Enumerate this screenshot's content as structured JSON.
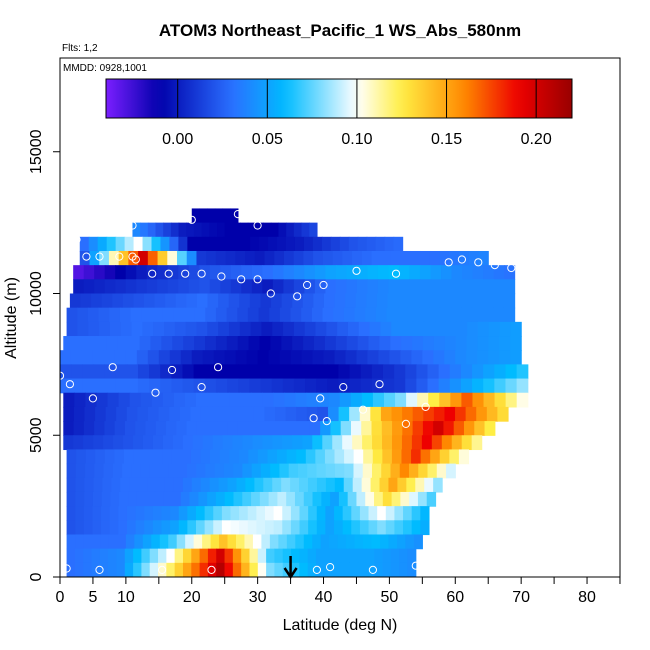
{
  "chart_data": {
    "type": "heatmap",
    "title": "ATOM3 Northeast_Pacific_1 WS_Abs_580nm",
    "flights_label": "Flts: 1,2",
    "dates_label": "MMDD: 0928,1001",
    "xlabel": "Latitude (deg N)",
    "ylabel": "Altitude (m)",
    "xlim": [
      0,
      85
    ],
    "ylim": [
      0,
      18000
    ],
    "x_ticks": [
      0,
      5,
      10,
      20,
      30,
      40,
      50,
      60,
      70,
      80
    ],
    "y_ticks": [
      0,
      5000,
      10000,
      15000
    ],
    "colorbar": {
      "range": [
        -0.04,
        0.22
      ],
      "ticks": [
        "0.00",
        "0.05",
        "0.10",
        "0.15",
        "0.20"
      ],
      "tick_values": [
        0.0,
        0.05,
        0.1,
        0.15,
        0.2
      ]
    },
    "colors": [
      "#7b1fff",
      "#0000aa",
      "#2a6fff",
      "#00bbff",
      "#ffffff",
      "#ffee44",
      "#ff8800",
      "#ee0000",
      "#990000"
    ],
    "arrow_latitude": 35,
    "layers": [
      {
        "alt": 12500,
        "lat0": 20,
        "lat1": 27,
        "vals": [
          -0.01,
          -0.01
        ]
      },
      {
        "alt": 12000,
        "lat0": 11,
        "lat1": 39,
        "vals": [
          0.04,
          0.0,
          -0.01,
          -0.01,
          0.02
        ]
      },
      {
        "alt": 11500,
        "lat0": 3,
        "lat1": 52,
        "vals": [
          0.03,
          0.1,
          -0.01,
          -0.01,
          0.0,
          0.02,
          0.03
        ]
      },
      {
        "alt": 11000,
        "lat0": 3,
        "lat1": 65,
        "vals": [
          0.02,
          0.2,
          0.01,
          0.0,
          0.02,
          0.03,
          0.03,
          0.04
        ]
      },
      {
        "alt": 10500,
        "lat0": 2,
        "lat1": 69,
        "vals": [
          -0.03,
          0.0,
          0.02,
          0.03,
          0.05,
          0.06,
          0.04,
          0.03
        ]
      },
      {
        "alt": 10000,
        "lat0": 2,
        "lat1": 69,
        "vals": [
          0.0,
          0.01,
          0.02,
          0.0,
          0.03,
          0.04,
          0.04,
          0.04
        ]
      },
      {
        "alt": 9500,
        "lat0": 1.5,
        "lat1": 69,
        "vals": [
          0.01,
          0.02,
          0.03,
          0.01,
          0.03,
          0.04,
          0.04,
          0.04
        ]
      },
      {
        "alt": 9000,
        "lat0": 1,
        "lat1": 69,
        "vals": [
          0.02,
          0.03,
          0.03,
          0.01,
          0.03,
          0.04,
          0.04,
          0.04
        ]
      },
      {
        "alt": 8500,
        "lat0": 1,
        "lat1": 70,
        "vals": [
          0.02,
          0.03,
          0.02,
          0.0,
          0.02,
          0.04,
          0.04,
          0.05
        ]
      },
      {
        "alt": 8000,
        "lat0": 0.5,
        "lat1": 70,
        "vals": [
          0.03,
          0.03,
          0.01,
          -0.01,
          0.01,
          0.03,
          0.04,
          0.05
        ]
      },
      {
        "alt": 7500,
        "lat0": 0,
        "lat1": 70,
        "vals": [
          0.03,
          0.03,
          0.0,
          -0.01,
          0.0,
          0.02,
          0.04,
          0.05
        ]
      },
      {
        "alt": 7000,
        "lat0": 0,
        "lat1": 71,
        "vals": [
          0.02,
          0.02,
          -0.01,
          -0.01,
          -0.01,
          0.01,
          0.04,
          0.07
        ]
      },
      {
        "alt": 6500,
        "lat0": 0,
        "lat1": 71,
        "vals": [
          0.03,
          0.03,
          0.02,
          0.01,
          0.0,
          0.01,
          0.05,
          0.09
        ]
      },
      {
        "alt": 6000,
        "lat0": 0.5,
        "lat1": 71,
        "vals": [
          0.0,
          0.02,
          0.03,
          0.03,
          0.04,
          0.08,
          0.17,
          0.09
        ]
      },
      {
        "alt": 5500,
        "lat0": 0.5,
        "lat1": 68,
        "vals": [
          0.0,
          0.02,
          0.03,
          0.03,
          0.02,
          0.15,
          0.19,
          0.12
        ]
      },
      {
        "alt": 5000,
        "lat0": 0.5,
        "lat1": 66,
        "vals": [
          0.0,
          0.02,
          0.03,
          0.03,
          0.03,
          0.13,
          0.2,
          0.11
        ]
      },
      {
        "alt": 4500,
        "lat0": 0.5,
        "lat1": 64,
        "vals": [
          0.01,
          0.02,
          0.03,
          0.04,
          0.05,
          0.12,
          0.19,
          0.1
        ]
      },
      {
        "alt": 4000,
        "lat0": 1,
        "lat1": 62,
        "vals": [
          0.02,
          0.03,
          0.03,
          0.04,
          0.06,
          0.1,
          0.18,
          0.09
        ]
      },
      {
        "alt": 3500,
        "lat0": 1,
        "lat1": 60,
        "vals": [
          0.02,
          0.03,
          0.03,
          0.04,
          0.07,
          0.08,
          0.16,
          0.08
        ]
      },
      {
        "alt": 3000,
        "lat0": 1,
        "lat1": 58,
        "vals": [
          0.02,
          0.03,
          0.03,
          0.05,
          0.08,
          0.06,
          0.15,
          0.07
        ]
      },
      {
        "alt": 2500,
        "lat0": 1,
        "lat1": 57,
        "vals": [
          0.02,
          0.03,
          0.03,
          0.06,
          0.09,
          0.05,
          0.13,
          0.06
        ]
      },
      {
        "alt": 2000,
        "lat0": 1,
        "lat1": 56,
        "vals": [
          0.02,
          0.03,
          0.04,
          0.08,
          0.1,
          0.05,
          0.1,
          0.05
        ]
      },
      {
        "alt": 1500,
        "lat0": 1,
        "lat1": 56,
        "vals": [
          0.02,
          0.03,
          0.05,
          0.1,
          0.09,
          0.05,
          0.08,
          0.05
        ]
      },
      {
        "alt": 1000,
        "lat0": 1,
        "lat1": 55,
        "vals": [
          0.03,
          0.03,
          0.07,
          0.14,
          0.08,
          0.05,
          0.06,
          0.04
        ]
      },
      {
        "alt": 500,
        "lat0": 1,
        "lat1": 54,
        "vals": [
          0.03,
          0.04,
          0.1,
          0.2,
          0.07,
          0.05,
          0.05,
          0.04
        ]
      },
      {
        "alt": 0,
        "lat0": 1,
        "lat1": 54,
        "vals": [
          0.03,
          0.04,
          0.12,
          0.21,
          0.08,
          0.05,
          0.05,
          0.04
        ]
      }
    ],
    "points": [
      [
        1,
        300
      ],
      [
        6,
        250
      ],
      [
        15.5,
        250
      ],
      [
        23,
        250
      ],
      [
        39,
        250
      ],
      [
        41,
        350
      ],
      [
        47.5,
        250
      ],
      [
        54,
        400
      ],
      [
        0,
        7100
      ],
      [
        1.5,
        6800
      ],
      [
        5,
        6300
      ],
      [
        8,
        7400
      ],
      [
        14.5,
        6500
      ],
      [
        17,
        7300
      ],
      [
        21.5,
        6700
      ],
      [
        24,
        7400
      ],
      [
        39.5,
        6300
      ],
      [
        43,
        6700
      ],
      [
        46,
        5900
      ],
      [
        48.5,
        6800
      ],
      [
        52.5,
        5400
      ],
      [
        55.5,
        6000
      ],
      [
        38.5,
        5600
      ],
      [
        40.5,
        5500
      ],
      [
        14,
        10700
      ],
      [
        16.5,
        10700
      ],
      [
        19,
        10700
      ],
      [
        21.5,
        10700
      ],
      [
        24.5,
        10600
      ],
      [
        27.5,
        10500
      ],
      [
        30,
        10500
      ],
      [
        32,
        10000
      ],
      [
        37.5,
        10300
      ],
      [
        36,
        9900
      ],
      [
        40,
        10300
      ],
      [
        45,
        10800
      ],
      [
        51,
        10700
      ],
      [
        59,
        11100
      ],
      [
        61,
        11200
      ],
      [
        63.5,
        11100
      ],
      [
        66,
        11000
      ],
      [
        68.5,
        10900
      ],
      [
        2.5,
        11900
      ],
      [
        4,
        11300
      ],
      [
        6,
        11300
      ],
      [
        9,
        11300
      ],
      [
        11,
        11300
      ],
      [
        11.5,
        11200
      ],
      [
        11,
        12400
      ],
      [
        20,
        12600
      ],
      [
        27,
        12800
      ],
      [
        30,
        12400
      ]
    ]
  }
}
